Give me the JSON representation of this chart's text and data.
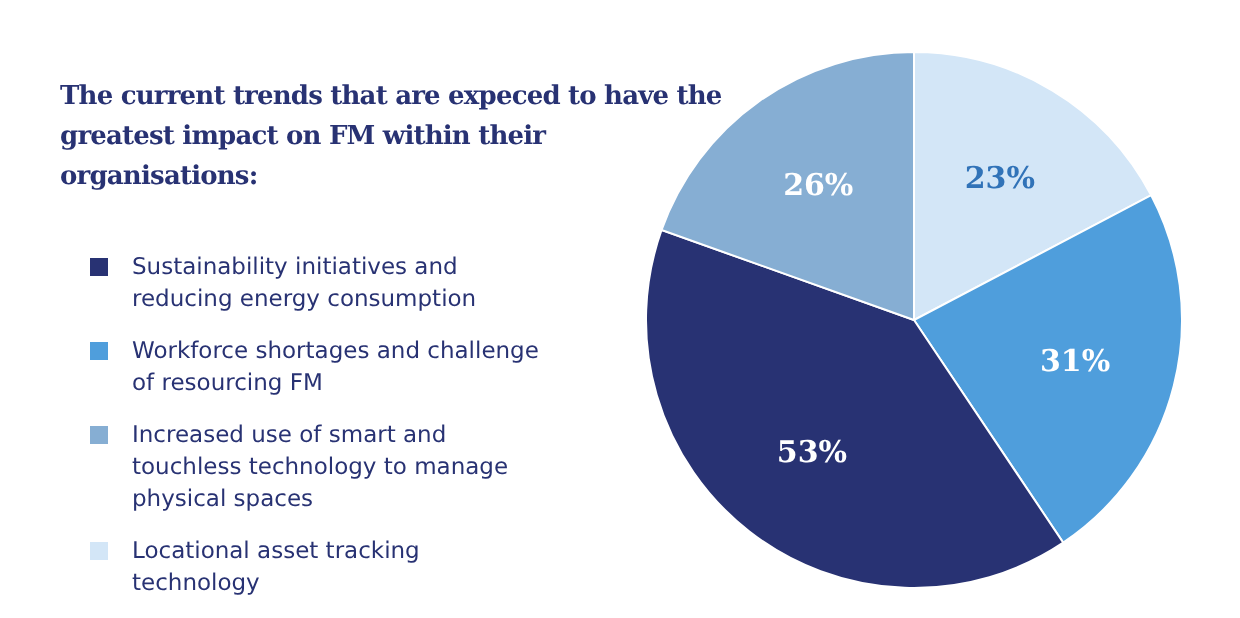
{
  "chart_data": {
    "type": "pie",
    "title": "The current trends that are expeced to have the greatest impact on FM within their organisations:",
    "categories": [
      "Locational asset tracking technology",
      "Workforce shortages and challenge of resourcing FM",
      "Sustainability initiatives and reducing energy consumption",
      "Increased use of smart and touchless technology to manage physical spaces"
    ],
    "values": [
      23,
      31,
      53,
      26
    ],
    "colors": [
      "#d3e6f7",
      "#4f9edc",
      "#283273",
      "#86aed3"
    ],
    "value_labels": [
      "23%",
      "31%",
      "53%",
      "26%"
    ],
    "legend": "left"
  }
}
